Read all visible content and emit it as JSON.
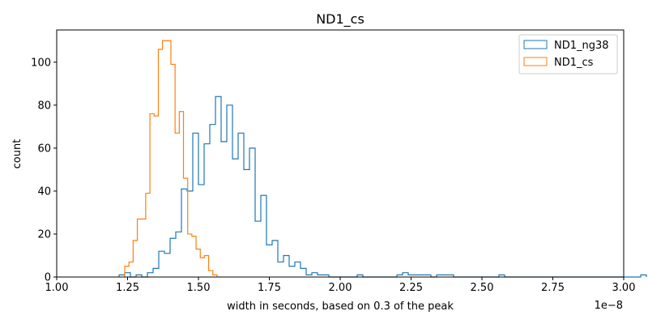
{
  "chart_data": {
    "type": "histogram",
    "title": "ND1_cs",
    "xlabel": "width in seconds, based on 0.3 of the peak",
    "ylabel": "count",
    "x_offset_label": "1e−8",
    "xlim": [
      1.0,
      3.0
    ],
    "ylim": [
      0,
      115
    ],
    "x_tick_values": [
      1.0,
      1.25,
      1.5,
      1.75,
      2.0,
      2.25,
      2.5,
      2.75,
      3.0
    ],
    "x_ticks": [
      "1.00",
      "1.25",
      "1.50",
      "1.75",
      "2.00",
      "2.25",
      "2.50",
      "2.75",
      "3.00"
    ],
    "y_tick_values": [
      0,
      20,
      40,
      60,
      80,
      100
    ],
    "y_ticks": [
      "0",
      "20",
      "40",
      "60",
      "80",
      "100"
    ],
    "legend_position": "top-right",
    "series": [
      {
        "name": "ND1_ng38",
        "color": "#1f77b4",
        "bin_start": 1.22,
        "bin_width": 0.02,
        "counts": [
          1,
          2,
          0,
          1,
          0,
          2,
          4,
          12,
          11,
          18,
          21,
          41,
          40,
          67,
          43,
          62,
          71,
          84,
          63,
          80,
          55,
          67,
          50,
          60,
          26,
          38,
          15,
          17,
          7,
          10,
          5,
          7,
          4,
          1,
          2,
          1,
          1,
          0,
          0,
          0,
          0,
          0,
          1,
          0,
          0,
          0,
          0,
          0,
          0,
          1,
          2,
          1,
          1,
          1,
          1,
          0,
          1,
          1,
          1,
          0,
          0,
          0,
          0,
          0,
          0,
          0,
          0,
          1,
          0,
          0,
          0,
          0,
          0,
          0,
          0,
          0,
          0,
          0,
          0,
          0,
          0,
          0,
          0,
          0,
          0,
          0,
          0,
          0,
          0,
          0,
          0,
          0,
          1
        ]
      },
      {
        "name": "ND1_cs",
        "color": "#ff7f0e",
        "bin_start": 1.24,
        "bin_width": 0.0148,
        "counts": [
          5,
          7,
          17,
          27,
          27,
          39,
          76,
          75,
          106,
          110,
          110,
          99,
          67,
          77,
          46,
          20,
          19,
          13,
          9,
          10,
          3,
          1
        ]
      }
    ]
  }
}
